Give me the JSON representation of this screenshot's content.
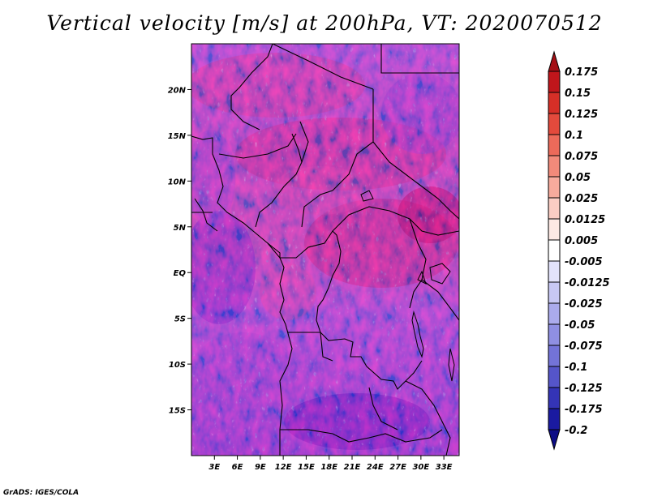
{
  "title": "Vertical velocity [m/s] at 200hPa, VT: 2020070512",
  "credit": "GrADS: IGES/COLA",
  "map": {
    "lon_range": [
      0,
      35
    ],
    "lat_range": [
      -20,
      25
    ],
    "x_ticks": [
      "3E",
      "6E",
      "9E",
      "12E",
      "15E",
      "18E",
      "21E",
      "24E",
      "27E",
      "30E",
      "33E"
    ],
    "y_ticks": [
      "20N",
      "15N",
      "10N",
      "5N",
      "EQ",
      "5S",
      "10S",
      "15S"
    ]
  },
  "colorbar": {
    "labels": [
      "0.175",
      "0.15",
      "0.125",
      "0.1",
      "0.075",
      "0.05",
      "0.025",
      "0.0125",
      "0.005",
      "-0.005",
      "-0.0125",
      "-0.025",
      "-0.05",
      "-0.075",
      "-0.1",
      "-0.125",
      "-0.175",
      "-0.2"
    ],
    "colors": [
      "#a50f15",
      "#c0161b",
      "#d62f27",
      "#e34a3c",
      "#ec6a5a",
      "#f28a7a",
      "#f7ab9d",
      "#fbcdc4",
      "#fde9e4",
      "#ffffff",
      "#e3e3fb",
      "#c8c8f4",
      "#ababec",
      "#8f8fe2",
      "#7373d8",
      "#5555c9",
      "#3434b6",
      "#1a1aa0",
      "#0c0c85"
    ]
  }
}
